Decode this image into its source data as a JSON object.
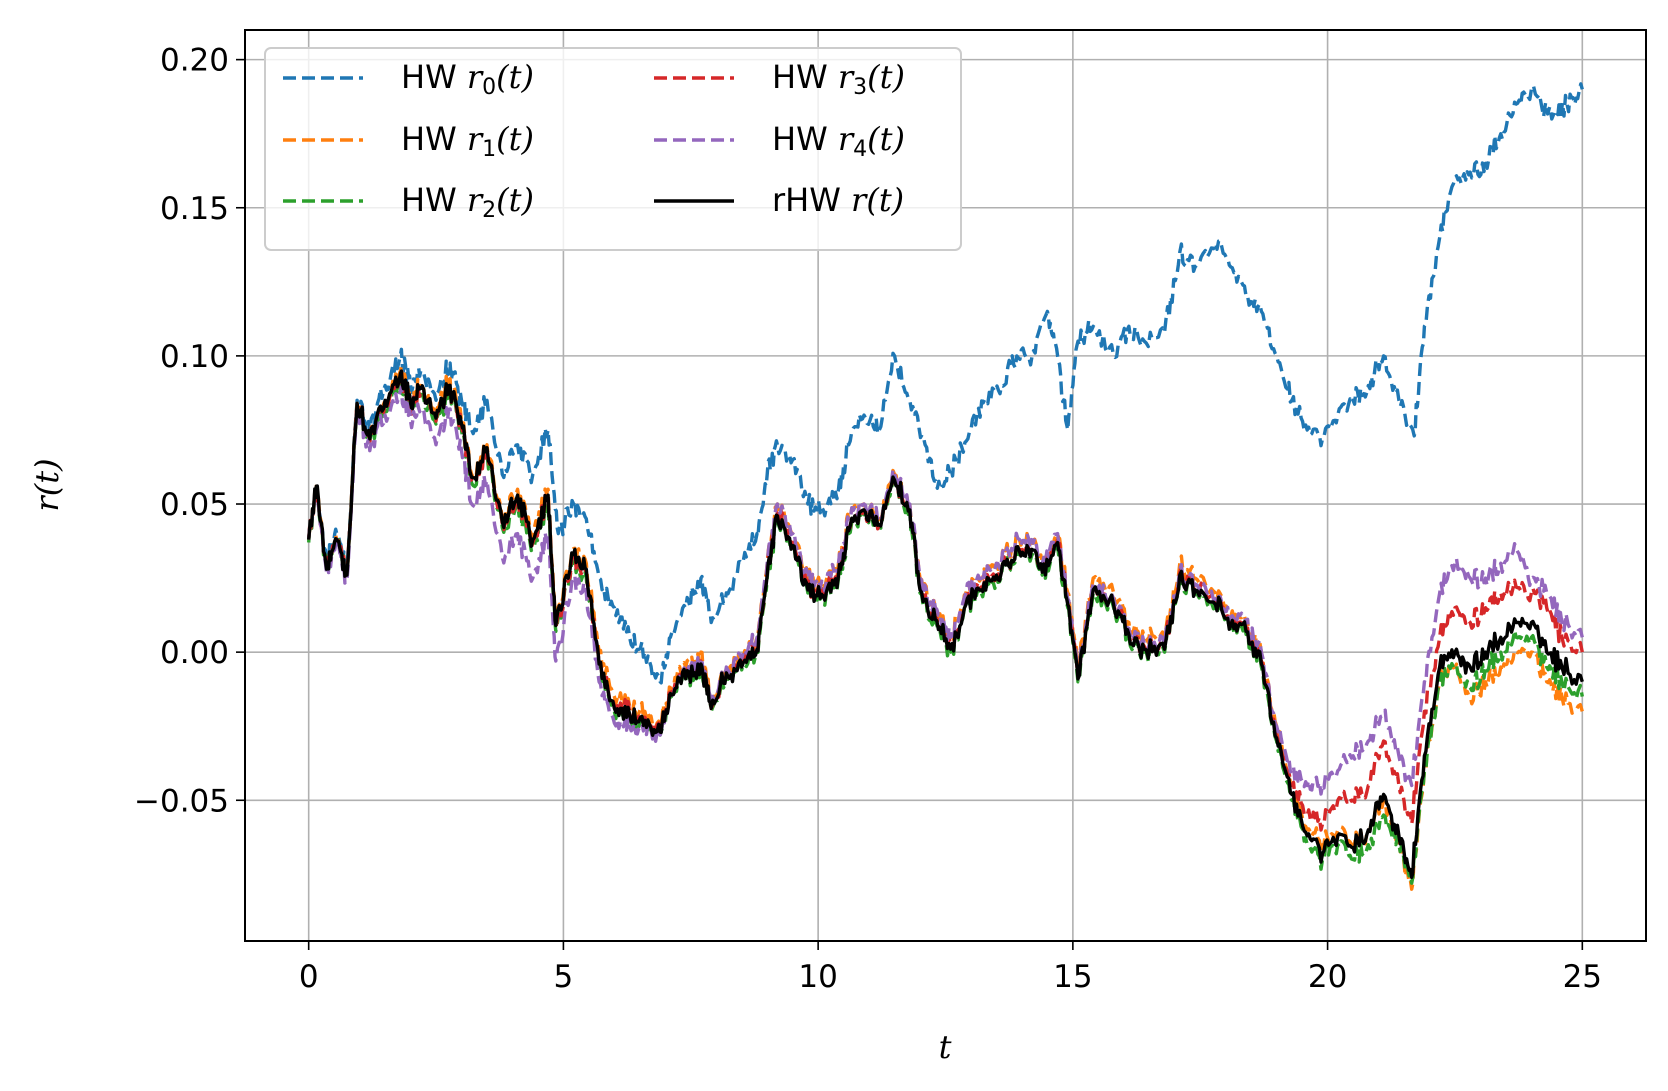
{
  "chart_data": {
    "type": "line",
    "xlabel": "t",
    "ylabel": "r(t)",
    "xlim": [
      -1.25,
      26.25
    ],
    "ylim": [
      -0.0975,
      0.21
    ],
    "xticks": [
      0,
      5,
      10,
      15,
      20,
      25
    ],
    "xtick_labels": [
      "0",
      "5",
      "10",
      "15",
      "20",
      "25"
    ],
    "yticks": [
      -0.05,
      0.0,
      0.05,
      0.1,
      0.15,
      0.2
    ],
    "ytick_labels": [
      "−0.05",
      "0.00",
      "0.05",
      "0.10",
      "0.15",
      "0.20"
    ],
    "grid": true,
    "legend": {
      "placement": "top-left",
      "columns": 2
    },
    "series": [
      {
        "name": "HW r0(t)",
        "prefix": "HW ",
        "var": "r",
        "sub": "0",
        "suffix": "(t)",
        "color": "#1f77b4",
        "style": "dashed",
        "x": [
          0,
          0.15,
          0.35,
          0.55,
          0.75,
          0.95,
          1.2,
          1.5,
          1.8,
          2.0,
          2.2,
          2.5,
          2.75,
          3.0,
          3.2,
          3.5,
          3.8,
          4.1,
          4.4,
          4.7,
          4.9,
          5.2,
          5.45,
          5.7,
          6.0,
          6.3,
          6.6,
          6.9,
          7.1,
          7.4,
          7.7,
          7.9,
          8.2,
          8.5,
          8.8,
          9.0,
          9.2,
          9.5,
          9.8,
          10.1,
          10.4,
          10.6,
          10.9,
          11.2,
          11.5,
          11.8,
          12.1,
          12.4,
          12.7,
          13.0,
          13.3,
          13.6,
          13.9,
          14.2,
          14.5,
          14.7,
          14.9,
          15.1,
          15.4,
          15.8,
          16.1,
          16.4,
          16.8,
          17.1,
          17.4,
          17.8,
          18.1,
          18.4,
          18.7,
          19.0,
          19.3,
          19.6,
          19.9,
          20.2,
          20.5,
          20.8,
          21.1,
          21.4,
          21.7,
          21.9,
          22.2,
          22.5,
          22.8,
          23.1,
          23.4,
          23.7,
          24.0,
          24.4,
          24.7,
          25.0
        ],
        "y": [
          0.038,
          0.055,
          0.03,
          0.04,
          0.028,
          0.085,
          0.075,
          0.09,
          0.1,
          0.09,
          0.095,
          0.085,
          0.097,
          0.085,
          0.075,
          0.085,
          0.06,
          0.07,
          0.06,
          0.075,
          0.04,
          0.05,
          0.045,
          0.025,
          0.015,
          0.005,
          0.0,
          -0.01,
          0.005,
          0.015,
          0.025,
          0.01,
          0.02,
          0.03,
          0.04,
          0.06,
          0.07,
          0.065,
          0.05,
          0.048,
          0.055,
          0.07,
          0.08,
          0.075,
          0.1,
          0.085,
          0.07,
          0.055,
          0.065,
          0.075,
          0.085,
          0.09,
          0.1,
          0.1,
          0.115,
          0.1,
          0.075,
          0.105,
          0.11,
          0.1,
          0.11,
          0.105,
          0.108,
          0.135,
          0.13,
          0.138,
          0.13,
          0.12,
          0.115,
          0.1,
          0.085,
          0.075,
          0.072,
          0.08,
          0.085,
          0.09,
          0.1,
          0.085,
          0.073,
          0.11,
          0.14,
          0.16,
          0.162,
          0.165,
          0.175,
          0.185,
          0.19,
          0.18,
          0.185,
          0.19
        ]
      },
      {
        "name": "HW r1(t)",
        "prefix": "HW ",
        "var": "r",
        "sub": "1",
        "suffix": "(t)",
        "color": "#ff7f0e",
        "style": "dashed",
        "x": [
          0,
          0.15,
          0.35,
          0.55,
          0.75,
          0.95,
          1.2,
          1.5,
          1.8,
          2.0,
          2.2,
          2.5,
          2.75,
          3.0,
          3.2,
          3.5,
          3.8,
          4.1,
          4.4,
          4.7,
          4.85,
          5.2,
          5.45,
          5.7,
          6.0,
          6.3,
          6.6,
          6.9,
          7.1,
          7.4,
          7.7,
          7.9,
          8.2,
          8.5,
          8.8,
          9.0,
          9.2,
          9.5,
          9.8,
          10.1,
          10.4,
          10.6,
          10.9,
          11.2,
          11.5,
          11.8,
          12.0,
          12.3,
          12.6,
          12.9,
          13.2,
          13.5,
          13.8,
          14.1,
          14.4,
          14.7,
          14.9,
          15.1,
          15.4,
          15.8,
          16.1,
          16.4,
          16.8,
          17.1,
          17.4,
          17.8,
          18.1,
          18.4,
          18.7,
          19.0,
          19.3,
          19.6,
          19.9,
          20.2,
          20.5,
          20.8,
          21.1,
          21.4,
          21.65,
          21.9,
          22.2,
          22.5,
          22.8,
          23.1,
          23.4,
          23.7,
          24.0,
          24.3,
          24.6,
          25.0
        ],
        "y": [
          0.038,
          0.056,
          0.028,
          0.038,
          0.026,
          0.084,
          0.072,
          0.085,
          0.095,
          0.085,
          0.09,
          0.08,
          0.092,
          0.078,
          0.06,
          0.07,
          0.045,
          0.055,
          0.04,
          0.055,
          0.01,
          0.035,
          0.03,
          0.0,
          -0.015,
          -0.018,
          -0.02,
          -0.025,
          -0.012,
          -0.005,
          0.0,
          -0.018,
          -0.005,
          -0.002,
          0.005,
          0.03,
          0.05,
          0.04,
          0.025,
          0.023,
          0.03,
          0.045,
          0.05,
          0.045,
          0.06,
          0.05,
          0.025,
          0.015,
          0.005,
          0.02,
          0.025,
          0.03,
          0.035,
          0.04,
          0.03,
          0.04,
          0.02,
          -0.005,
          0.025,
          0.02,
          0.01,
          0.005,
          0.005,
          0.03,
          0.025,
          0.02,
          0.012,
          0.01,
          0.0,
          -0.025,
          -0.045,
          -0.06,
          -0.065,
          -0.06,
          -0.065,
          -0.06,
          -0.05,
          -0.065,
          -0.08,
          -0.04,
          -0.01,
          -0.005,
          -0.015,
          -0.01,
          -0.005,
          0.0,
          0.0,
          -0.01,
          -0.015,
          -0.02
        ]
      },
      {
        "name": "HW r2(t)",
        "prefix": "HW ",
        "var": "r",
        "sub": "2",
        "suffix": "(t)",
        "color": "#2ca02c",
        "style": "dashed",
        "x": [
          0,
          0.15,
          0.35,
          0.55,
          0.75,
          0.95,
          1.2,
          1.5,
          1.8,
          2.0,
          2.2,
          2.5,
          2.75,
          3.0,
          3.2,
          3.5,
          3.8,
          4.1,
          4.4,
          4.7,
          4.85,
          5.2,
          5.45,
          5.7,
          6.0,
          6.3,
          6.6,
          6.9,
          7.1,
          7.4,
          7.7,
          7.9,
          8.2,
          8.5,
          8.8,
          9.0,
          9.2,
          9.5,
          9.8,
          10.1,
          10.4,
          10.6,
          10.9,
          11.2,
          11.5,
          11.8,
          12.0,
          12.3,
          12.6,
          12.9,
          13.2,
          13.5,
          13.8,
          14.1,
          14.4,
          14.7,
          14.9,
          15.1,
          15.4,
          15.8,
          16.1,
          16.4,
          16.8,
          17.1,
          17.4,
          17.8,
          18.1,
          18.4,
          18.7,
          19.0,
          19.3,
          19.6,
          19.9,
          20.2,
          20.5,
          20.8,
          21.1,
          21.4,
          21.65,
          21.9,
          22.2,
          22.5,
          22.8,
          23.1,
          23.4,
          23.7,
          24.0,
          24.3,
          24.6,
          25.0
        ],
        "y": [
          0.037,
          0.055,
          0.028,
          0.037,
          0.026,
          0.083,
          0.071,
          0.083,
          0.092,
          0.082,
          0.087,
          0.077,
          0.088,
          0.075,
          0.057,
          0.067,
          0.042,
          0.05,
          0.035,
          0.05,
          0.007,
          0.03,
          0.025,
          -0.005,
          -0.02,
          -0.022,
          -0.024,
          -0.028,
          -0.015,
          -0.01,
          -0.005,
          -0.02,
          -0.008,
          -0.006,
          0.0,
          0.025,
          0.045,
          0.035,
          0.02,
          0.018,
          0.025,
          0.04,
          0.047,
          0.042,
          0.057,
          0.047,
          0.02,
          0.01,
          0.0,
          0.015,
          0.02,
          0.025,
          0.03,
          0.035,
          0.026,
          0.036,
          0.015,
          -0.01,
          0.02,
          0.015,
          0.005,
          0.0,
          0.0,
          0.025,
          0.02,
          0.015,
          0.008,
          0.006,
          -0.005,
          -0.03,
          -0.05,
          -0.065,
          -0.07,
          -0.065,
          -0.07,
          -0.065,
          -0.055,
          -0.065,
          -0.078,
          -0.04,
          -0.01,
          -0.005,
          -0.012,
          -0.005,
          0.0,
          0.005,
          0.005,
          -0.005,
          -0.01,
          -0.015
        ]
      },
      {
        "name": "HW r3(t)",
        "prefix": "HW ",
        "var": "r",
        "sub": "3",
        "suffix": "(t)",
        "color": "#d62728",
        "style": "dashed",
        "x": [
          0,
          0.15,
          0.35,
          0.55,
          0.75,
          0.95,
          1.2,
          1.5,
          1.8,
          2.0,
          2.2,
          2.5,
          2.75,
          3.0,
          3.2,
          3.5,
          3.8,
          4.1,
          4.4,
          4.7,
          4.85,
          5.2,
          5.45,
          5.7,
          6.0,
          6.3,
          6.6,
          6.9,
          7.1,
          7.4,
          7.7,
          7.9,
          8.2,
          8.5,
          8.8,
          9.0,
          9.2,
          9.5,
          9.8,
          10.1,
          10.4,
          10.6,
          10.9,
          11.2,
          11.5,
          11.8,
          12.0,
          12.3,
          12.6,
          12.9,
          13.2,
          13.5,
          13.8,
          14.1,
          14.4,
          14.7,
          14.9,
          15.1,
          15.4,
          15.8,
          16.1,
          16.4,
          16.8,
          17.1,
          17.4,
          17.8,
          18.1,
          18.4,
          18.7,
          19.0,
          19.3,
          19.6,
          19.9,
          20.2,
          20.5,
          20.8,
          21.1,
          21.4,
          21.65,
          21.9,
          22.2,
          22.5,
          22.8,
          23.1,
          23.4,
          23.7,
          24.0,
          24.3,
          24.6,
          25.0
        ],
        "y": [
          0.038,
          0.055,
          0.028,
          0.038,
          0.026,
          0.084,
          0.071,
          0.084,
          0.093,
          0.083,
          0.088,
          0.078,
          0.089,
          0.076,
          0.058,
          0.068,
          0.043,
          0.052,
          0.037,
          0.052,
          0.008,
          0.032,
          0.027,
          -0.003,
          -0.018,
          -0.02,
          -0.022,
          -0.026,
          -0.013,
          -0.008,
          -0.003,
          -0.019,
          -0.007,
          -0.004,
          0.002,
          0.027,
          0.047,
          0.037,
          0.022,
          0.02,
          0.027,
          0.042,
          0.048,
          0.043,
          0.058,
          0.048,
          0.022,
          0.012,
          0.002,
          0.017,
          0.022,
          0.027,
          0.032,
          0.037,
          0.028,
          0.038,
          0.017,
          -0.008,
          0.022,
          0.017,
          0.007,
          0.002,
          0.002,
          0.027,
          0.022,
          0.017,
          0.01,
          0.008,
          -0.003,
          -0.028,
          -0.045,
          -0.055,
          -0.058,
          -0.05,
          -0.05,
          -0.045,
          -0.03,
          -0.045,
          -0.058,
          -0.02,
          0.005,
          0.015,
          0.01,
          0.015,
          0.02,
          0.022,
          0.02,
          0.015,
          0.005,
          0.0
        ]
      },
      {
        "name": "HW r4(t)",
        "prefix": "HW ",
        "var": "r",
        "sub": "4",
        "suffix": "(t)",
        "color": "#9467bd",
        "style": "dashed",
        "x": [
          0,
          0.15,
          0.35,
          0.55,
          0.75,
          0.95,
          1.2,
          1.5,
          1.8,
          2.0,
          2.2,
          2.5,
          2.75,
          3.0,
          3.2,
          3.5,
          3.8,
          4.1,
          4.4,
          4.7,
          4.85,
          5.2,
          5.45,
          5.7,
          6.0,
          6.3,
          6.6,
          6.9,
          7.1,
          7.4,
          7.7,
          7.9,
          8.2,
          8.5,
          8.8,
          9.0,
          9.2,
          9.5,
          9.8,
          10.1,
          10.4,
          10.6,
          10.9,
          11.2,
          11.5,
          11.8,
          12.0,
          12.3,
          12.6,
          12.9,
          13.2,
          13.5,
          13.8,
          14.1,
          14.4,
          14.7,
          14.9,
          15.1,
          15.4,
          15.8,
          16.1,
          16.4,
          16.8,
          17.1,
          17.4,
          17.8,
          18.1,
          18.4,
          18.7,
          19.0,
          19.3,
          19.6,
          19.9,
          20.2,
          20.5,
          20.8,
          21.1,
          21.4,
          21.65,
          21.9,
          22.2,
          22.5,
          22.8,
          23.1,
          23.4,
          23.7,
          24.0,
          24.3,
          24.6,
          25.0
        ],
        "y": [
          0.038,
          0.055,
          0.027,
          0.036,
          0.024,
          0.082,
          0.068,
          0.08,
          0.088,
          0.078,
          0.082,
          0.07,
          0.082,
          0.068,
          0.05,
          0.058,
          0.032,
          0.04,
          0.025,
          0.04,
          -0.003,
          0.025,
          0.02,
          -0.01,
          -0.024,
          -0.025,
          -0.025,
          -0.028,
          -0.014,
          -0.008,
          -0.002,
          -0.018,
          -0.005,
          -0.002,
          0.005,
          0.03,
          0.05,
          0.04,
          0.025,
          0.023,
          0.03,
          0.045,
          0.05,
          0.045,
          0.06,
          0.05,
          0.025,
          0.015,
          0.005,
          0.02,
          0.025,
          0.03,
          0.035,
          0.04,
          0.03,
          0.04,
          0.018,
          -0.007,
          0.023,
          0.018,
          0.008,
          0.003,
          0.003,
          0.028,
          0.023,
          0.018,
          0.012,
          0.01,
          0.0,
          -0.025,
          -0.04,
          -0.045,
          -0.045,
          -0.04,
          -0.035,
          -0.03,
          -0.02,
          -0.035,
          -0.045,
          -0.01,
          0.02,
          0.03,
          0.025,
          0.025,
          0.03,
          0.035,
          0.025,
          0.02,
          0.01,
          0.005
        ]
      },
      {
        "name": "rHW r(t)",
        "prefix": "rHW ",
        "var": "r",
        "sub": "",
        "suffix": "(t)",
        "color": "#000000",
        "style": "solid",
        "x": [
          0,
          0.15,
          0.35,
          0.55,
          0.75,
          0.95,
          1.2,
          1.5,
          1.8,
          2.0,
          2.2,
          2.5,
          2.75,
          3.0,
          3.2,
          3.5,
          3.8,
          4.1,
          4.4,
          4.7,
          4.85,
          5.2,
          5.45,
          5.7,
          6.0,
          6.3,
          6.6,
          6.9,
          7.1,
          7.4,
          7.7,
          7.9,
          8.2,
          8.5,
          8.8,
          9.0,
          9.2,
          9.5,
          9.8,
          10.1,
          10.4,
          10.6,
          10.9,
          11.2,
          11.5,
          11.8,
          12.0,
          12.3,
          12.6,
          12.9,
          13.2,
          13.5,
          13.8,
          14.1,
          14.4,
          14.7,
          14.9,
          15.1,
          15.4,
          15.8,
          16.1,
          16.4,
          16.8,
          17.1,
          17.4,
          17.8,
          18.1,
          18.4,
          18.7,
          19.0,
          19.3,
          19.6,
          19.9,
          20.2,
          20.5,
          20.8,
          21.1,
          21.4,
          21.65,
          21.9,
          22.2,
          22.5,
          22.8,
          23.1,
          23.4,
          23.7,
          24.0,
          24.3,
          24.6,
          25.0
        ],
        "y": [
          0.038,
          0.056,
          0.028,
          0.038,
          0.026,
          0.084,
          0.072,
          0.085,
          0.094,
          0.084,
          0.089,
          0.079,
          0.09,
          0.077,
          0.059,
          0.069,
          0.044,
          0.053,
          0.038,
          0.053,
          0.009,
          0.033,
          0.028,
          -0.004,
          -0.019,
          -0.021,
          -0.023,
          -0.027,
          -0.014,
          -0.009,
          -0.004,
          -0.019,
          -0.007,
          -0.005,
          0.001,
          0.026,
          0.046,
          0.036,
          0.021,
          0.019,
          0.026,
          0.041,
          0.048,
          0.043,
          0.058,
          0.048,
          0.021,
          0.011,
          0.001,
          0.016,
          0.021,
          0.026,
          0.031,
          0.036,
          0.027,
          0.037,
          0.016,
          -0.009,
          0.021,
          0.016,
          0.006,
          0.001,
          0.001,
          0.026,
          0.021,
          0.016,
          0.009,
          0.007,
          -0.004,
          -0.029,
          -0.048,
          -0.062,
          -0.068,
          -0.062,
          -0.066,
          -0.06,
          -0.048,
          -0.062,
          -0.076,
          -0.035,
          -0.005,
          0.0,
          -0.005,
          0.0,
          0.005,
          0.01,
          0.01,
          0.0,
          -0.005,
          -0.01
        ]
      }
    ]
  }
}
